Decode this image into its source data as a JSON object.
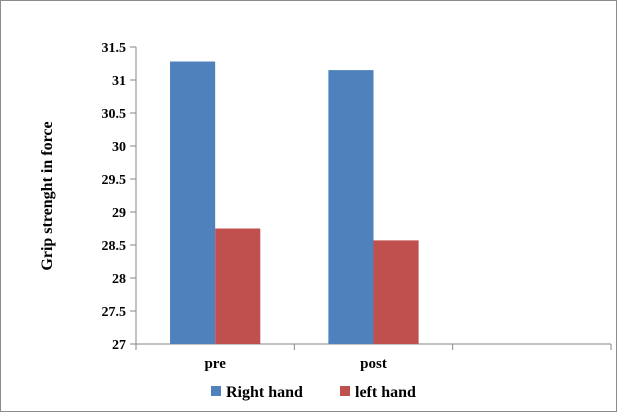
{
  "chart_data": {
    "type": "bar",
    "categories": [
      "pre",
      "post",
      ""
    ],
    "series": [
      {
        "name": "Right hand",
        "color": "#4f81bd",
        "values": [
          31.28,
          31.15,
          null
        ]
      },
      {
        "name": "left hand",
        "color": "#c0504d",
        "values": [
          28.75,
          28.57,
          null
        ]
      }
    ],
    "ylabel": "Grip strenght in force",
    "xlabel": "",
    "ylim": [
      27,
      31.5
    ],
    "yticks": [
      27,
      27.5,
      28,
      28.5,
      29,
      29.5,
      30,
      30.5,
      31,
      31.5
    ],
    "ytick_labels": [
      "27",
      "27.5",
      "28",
      "28.5",
      "29",
      "29.5",
      "30",
      "30.5",
      "31",
      "31.5"
    ],
    "grid": false,
    "legend_position": "bottom"
  }
}
